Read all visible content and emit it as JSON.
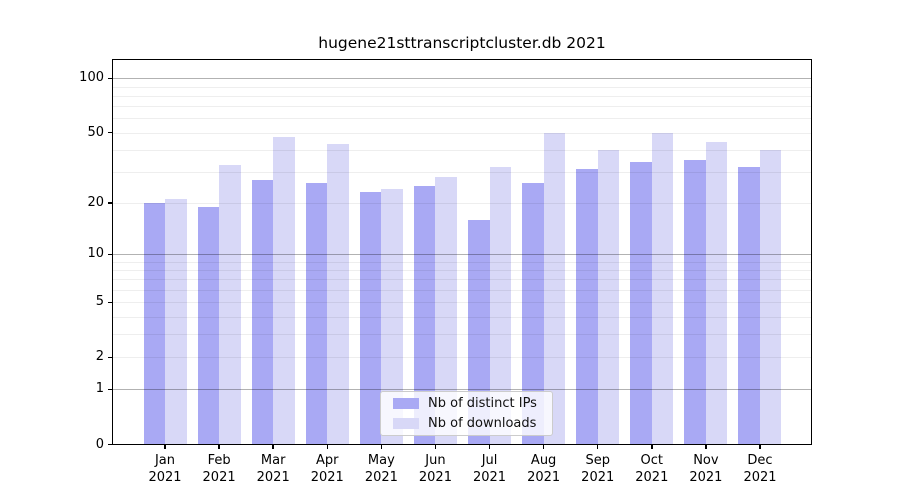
{
  "title": "hugene21sttranscriptcluster.db 2021",
  "chart_data": {
    "type": "bar",
    "categories": [
      "Jan",
      "Feb",
      "Mar",
      "Apr",
      "May",
      "Jun",
      "Jul",
      "Aug",
      "Sep",
      "Oct",
      "Nov",
      "Dec"
    ],
    "x_year_suffix": "2021",
    "series": [
      {
        "name": "Nb of distinct IPs",
        "color": "#a9a9f4",
        "values": [
          20,
          19,
          27,
          26,
          23,
          25,
          16,
          26,
          31,
          34,
          35,
          32
        ]
      },
      {
        "name": "Nb of downloads",
        "color": "#d8d8f7",
        "values": [
          21,
          33,
          47,
          43,
          24,
          28,
          32,
          50,
          40,
          50,
          44,
          40
        ]
      }
    ],
    "yscale": "log1p",
    "yticks": [
      0,
      1,
      2,
      5,
      10,
      20,
      50,
      100
    ],
    "major_gridlines": [
      1,
      10,
      100
    ],
    "minor_gridlines": [
      2,
      3,
      4,
      5,
      6,
      7,
      8,
      9,
      20,
      30,
      40,
      50,
      60,
      70,
      80,
      90
    ],
    "ylim": [
      0,
      125
    ],
    "grid": true,
    "legend_position": "inside-bottom-center"
  },
  "colors": {
    "major_grid": "rgba(0,0,0,0.30)",
    "minor_grid": "rgba(0,0,0,0.065)",
    "frame": "#000000",
    "background": "#ffffff"
  }
}
